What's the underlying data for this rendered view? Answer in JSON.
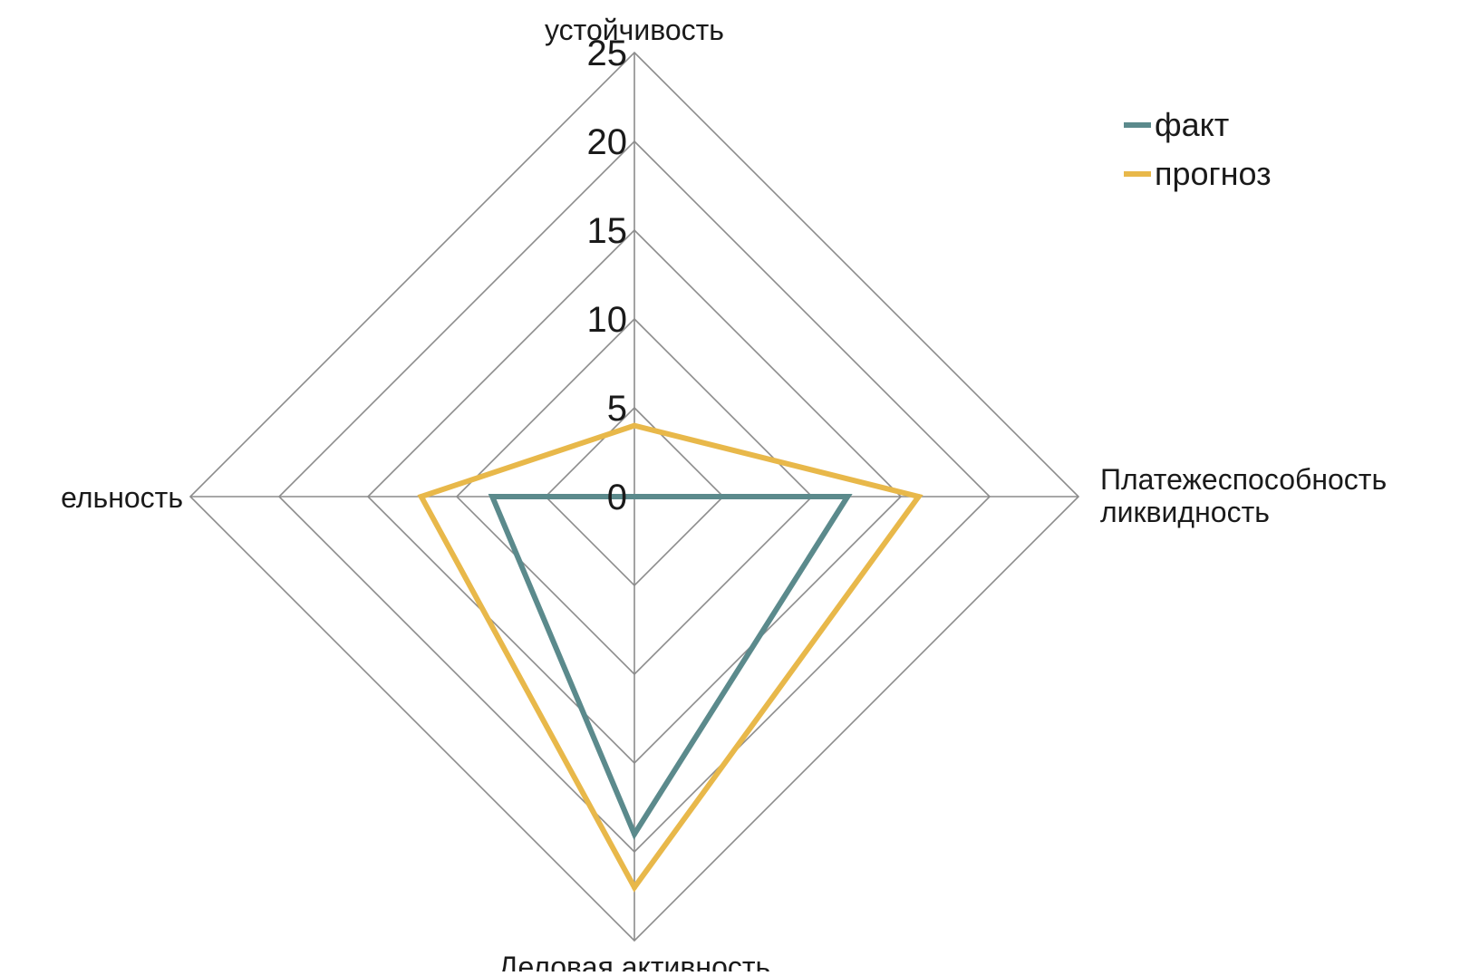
{
  "chart_data": {
    "type": "radar",
    "axes": [
      {
        "label_lines": [
          "устойчивость"
        ]
      },
      {
        "label_lines": [
          "Платежеспособность",
          "ликвидность"
        ]
      },
      {
        "label_lines": [
          "Деловая активность"
        ]
      },
      {
        "label_lines": [
          "ельность"
        ]
      }
    ],
    "r_range": [
      0,
      25
    ],
    "r_ticks": [
      0,
      5,
      10,
      15,
      20,
      25
    ],
    "grid": true,
    "legend_position": "top-right",
    "series": [
      {
        "name": "факт",
        "color": "#5b8a8c",
        "values": [
          0,
          12,
          19,
          8
        ]
      },
      {
        "name": "прогноз",
        "color": "#e8b84a",
        "values": [
          4,
          16,
          22,
          12
        ]
      }
    ]
  }
}
